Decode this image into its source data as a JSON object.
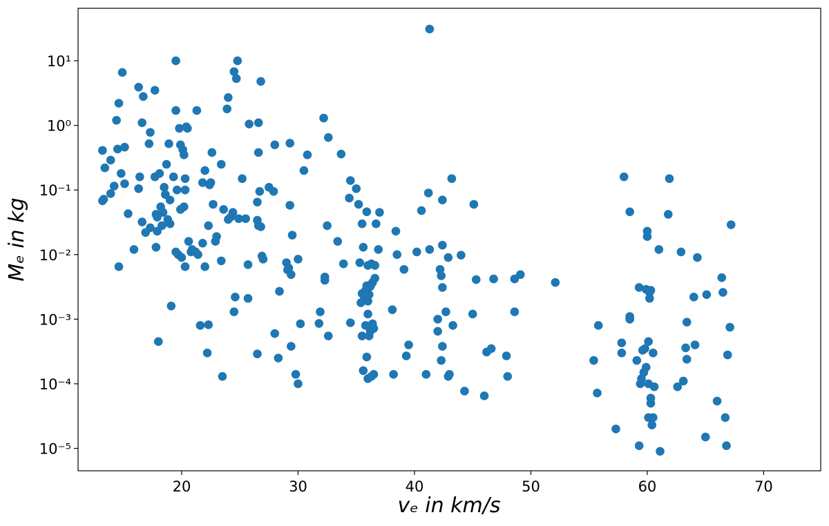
{
  "chart_data": {
    "type": "scatter",
    "x_label": "vₑ in km/s",
    "y_label": "Mₑ in kg",
    "log_y": true,
    "color": "#1f77b4",
    "xlim": [
      11.1,
      74.9
    ],
    "ylim": [
      4.5e-06,
      65
    ],
    "xticks": [
      20,
      30,
      40,
      50,
      60,
      70
    ],
    "yticks": [
      {
        "value": 1e-05,
        "label": "10⁻⁵"
      },
      {
        "value": 0.0001,
        "label": "10⁻⁴"
      },
      {
        "value": 0.001,
        "label": "10⁻³"
      },
      {
        "value": 0.01,
        "label": "10⁻²"
      },
      {
        "value": 0.1,
        "label": "10⁻¹"
      },
      {
        "value": 1,
        "label": "10⁰"
      },
      {
        "value": 10,
        "label": "10¹"
      }
    ],
    "x": [
      13.2,
      13.4,
      13.9,
      13.2,
      13.3,
      13.9,
      14.2,
      14.4,
      14.6,
      14.9,
      14.5,
      14.8,
      15.1,
      15.1,
      15.4,
      14.6,
      15.9,
      16.3,
      16.7,
      16.6,
      16.4,
      16.3,
      16.6,
      16.9,
      17.2,
      17.3,
      17.3,
      17.7,
      17.7,
      17.8,
      17.8,
      17.9,
      17.9,
      18.1,
      18.2,
      18.0,
      18.3,
      18.4,
      18.5,
      18.6,
      18.7,
      18.8,
      18.9,
      19.0,
      19.0,
      19.1,
      19.3,
      19.5,
      19.5,
      19.5,
      19.6,
      19.7,
      19.8,
      19.9,
      19.9,
      20.0,
      20.1,
      20.2,
      20.2,
      20.3,
      20.3,
      20.3,
      20.4,
      20.5,
      20.6,
      20.8,
      20.9,
      21.2,
      21.3,
      21.4,
      21.6,
      21.8,
      21.8,
      22.0,
      22.0,
      22.2,
      22.3,
      22.3,
      22.4,
      22.5,
      22.6,
      22.7,
      22.9,
      23.0,
      23.4,
      23.4,
      23.5,
      23.6,
      23.9,
      24.0,
      24.0,
      24.2,
      24.4,
      24.5,
      24.5,
      24.6,
      24.7,
      24.8,
      24.9,
      25.2,
      25.5,
      25.7,
      25.7,
      25.8,
      26.5,
      26.6,
      26.5,
      26.5,
      26.6,
      26.6,
      26.7,
      26.8,
      26.8,
      26.9,
      27.0,
      27.5,
      27.9,
      28.0,
      28.0,
      28.3,
      28.4,
      29.0,
      29.1,
      29.2,
      29.3,
      29.3,
      29.4,
      29.4,
      29.5,
      29.8,
      30.0,
      30.0,
      30.2,
      30.5,
      30.8,
      31.8,
      31.9,
      32.2,
      32.3,
      32.3,
      32.5,
      32.6,
      32.6,
      33.4,
      33.7,
      33.9,
      34.4,
      34.5,
      34.5,
      35.0,
      35.2,
      35.3,
      35.4,
      35.5,
      35.5,
      35.5,
      35.6,
      35.6,
      35.7,
      35.8,
      35.8,
      35.8,
      35.9,
      35.9,
      35.9,
      36.0,
      36.0,
      36.0,
      36.0,
      36.1,
      36.1,
      36.2,
      36.2,
      36.3,
      36.3,
      36.3,
      36.4,
      36.4,
      36.5,
      36.5,
      36.6,
      36.6,
      36.7,
      36.9,
      37.0,
      38.1,
      38.2,
      38.4,
      38.5,
      39.1,
      39.3,
      39.5,
      40.2,
      40.6,
      41.0,
      41.2,
      41.3,
      41.3,
      42.0,
      42.0,
      42.2,
      42.3,
      42.3,
      42.4,
      42.4,
      42.4,
      42.4,
      42.7,
      42.9,
      42.9,
      43.0,
      43.2,
      43.3,
      44.0,
      44.3,
      45.0,
      45.1,
      45.3,
      46.0,
      46.2,
      46.6,
      46.8,
      47.9,
      48.0,
      48.6,
      48.6,
      49.1,
      52.1,
      55.4,
      55.7,
      55.8,
      57.3,
      57.8,
      57.8,
      58.0,
      58.5,
      58.5,
      58.5,
      59.1,
      59.3,
      59.3,
      59.4,
      59.5,
      59.6,
      59.7,
      59.8,
      59.9,
      59.9,
      60.0,
      60.0,
      60.1,
      60.1,
      60.1,
      60.2,
      60.2,
      60.3,
      60.3,
      60.3,
      60.4,
      60.5,
      60.5,
      60.6,
      61.0,
      61.1,
      61.8,
      61.9,
      62.6,
      62.9,
      63.1,
      63.3,
      63.4,
      63.4,
      64.0,
      64.1,
      64.3,
      65.0,
      65.1,
      66.0,
      66.4,
      66.5,
      66.7,
      66.8,
      66.9,
      67.1,
      67.2
    ],
    "values": [
      0.41,
      0.22,
      0.29,
      0.068,
      0.072,
      0.088,
      0.115,
      1.2,
      2.2,
      6.6,
      0.43,
      0.18,
      0.46,
      0.125,
      0.043,
      0.0065,
      0.012,
      3.9,
      2.8,
      1.1,
      0.16,
      0.105,
      0.032,
      0.022,
      0.52,
      0.78,
      0.026,
      3.5,
      0.16,
      0.042,
      0.013,
      0.023,
      0.038,
      0.18,
      0.055,
      0.00045,
      0.028,
      0.045,
      0.11,
      0.085,
      0.25,
      0.035,
      0.52,
      0.07,
      0.03,
      0.0016,
      0.16,
      10,
      1.7,
      0.011,
      0.1,
      0.01,
      0.9,
      0.5,
      0.05,
      0.009,
      0.42,
      0.055,
      0.35,
      0.0065,
      0.15,
      0.1,
      0.95,
      0.9,
      0.016,
      0.011,
      0.012,
      0.011,
      1.7,
      0.01,
      0.0008,
      0.015,
      0.13,
      0.2,
      0.0065,
      0.0003,
      0.00082,
      0.028,
      0.12,
      0.13,
      0.38,
      0.06,
      0.016,
      0.019,
      0.25,
      0.008,
      0.00013,
      0.05,
      1.8,
      2.7,
      0.035,
      0.038,
      0.045,
      0.0013,
      6.8,
      0.0022,
      5.3,
      10,
      0.036,
      0.15,
      0.036,
      0.007,
      0.0021,
      1.05,
      0.00029,
      1.1,
      0.065,
      0.034,
      0.38,
      0.028,
      0.095,
      4.8,
      0.027,
      0.0095,
      0.0085,
      0.11,
      0.095,
      0.5,
      0.0006,
      0.00025,
      0.0027,
      0.0075,
      0.0058,
      0.0062,
      0.53,
      0.058,
      0.0049,
      0.00038,
      0.02,
      0.00014,
      0.0085,
      0.0001,
      0.00085,
      0.2,
      0.35,
      0.00086,
      0.0013,
      1.3,
      0.004,
      0.0045,
      0.028,
      0.00055,
      0.65,
      0.016,
      0.36,
      0.0072,
      0.075,
      0.14,
      0.00088,
      0.105,
      0.06,
      0.0075,
      0.0018,
      0.0025,
      0.03,
      0.00055,
      0.00016,
      0.013,
      0.0022,
      0.0028,
      0.0008,
      0.0027,
      0.046,
      0.00026,
      0.0033,
      0.00012,
      0.0012,
      0.0019,
      0.0068,
      0.0024,
      0.00055,
      0.0032,
      0.00065,
      0.0035,
      0.00013,
      0.0072,
      0.0037,
      0.00085,
      0.00072,
      0.00014,
      0.0043,
      0.0068,
      0.03,
      0.012,
      0.045,
      0.0014,
      0.00014,
      0.023,
      0.01,
      0.0059,
      0.00027,
      0.0004,
      0.011,
      0.048,
      0.00014,
      0.09,
      31,
      0.012,
      0.00065,
      0.001,
      0.0059,
      0.0047,
      0.00023,
      0.0031,
      0.07,
      0.014,
      0.00038,
      0.0013,
      0.00013,
      0.009,
      0.00014,
      0.15,
      0.0008,
      0.0098,
      7.7e-05,
      0.0012,
      0.06,
      0.0041,
      6.5e-05,
      0.00031,
      0.00035,
      0.0042,
      0.00027,
      0.00013,
      0.0042,
      0.0013,
      0.0049,
      0.0037,
      0.00023,
      7.2e-05,
      0.0008,
      2e-05,
      0.00043,
      0.0003,
      0.16,
      0.0011,
      0.046,
      0.001,
      0.00023,
      1.1e-05,
      0.0031,
      0.0001,
      0.00012,
      0.00033,
      0.00015,
      0.00035,
      0.0029,
      0.00018,
      0.023,
      0.019,
      0.0001,
      0.00045,
      3e-05,
      0.0026,
      0.0021,
      0.0028,
      5e-05,
      6e-05,
      2.3e-05,
      0.0003,
      3e-05,
      9e-05,
      0.012,
      9e-06,
      0.042,
      0.15,
      9e-05,
      0.011,
      0.00011,
      0.00036,
      0.00024,
      0.0009,
      0.0022,
      0.0004,
      0.009,
      1.5e-05,
      0.0024,
      5.4e-05,
      0.0044,
      0.0026,
      3e-05,
      1.1e-05,
      0.00028,
      0.00075,
      0.029
    ]
  }
}
